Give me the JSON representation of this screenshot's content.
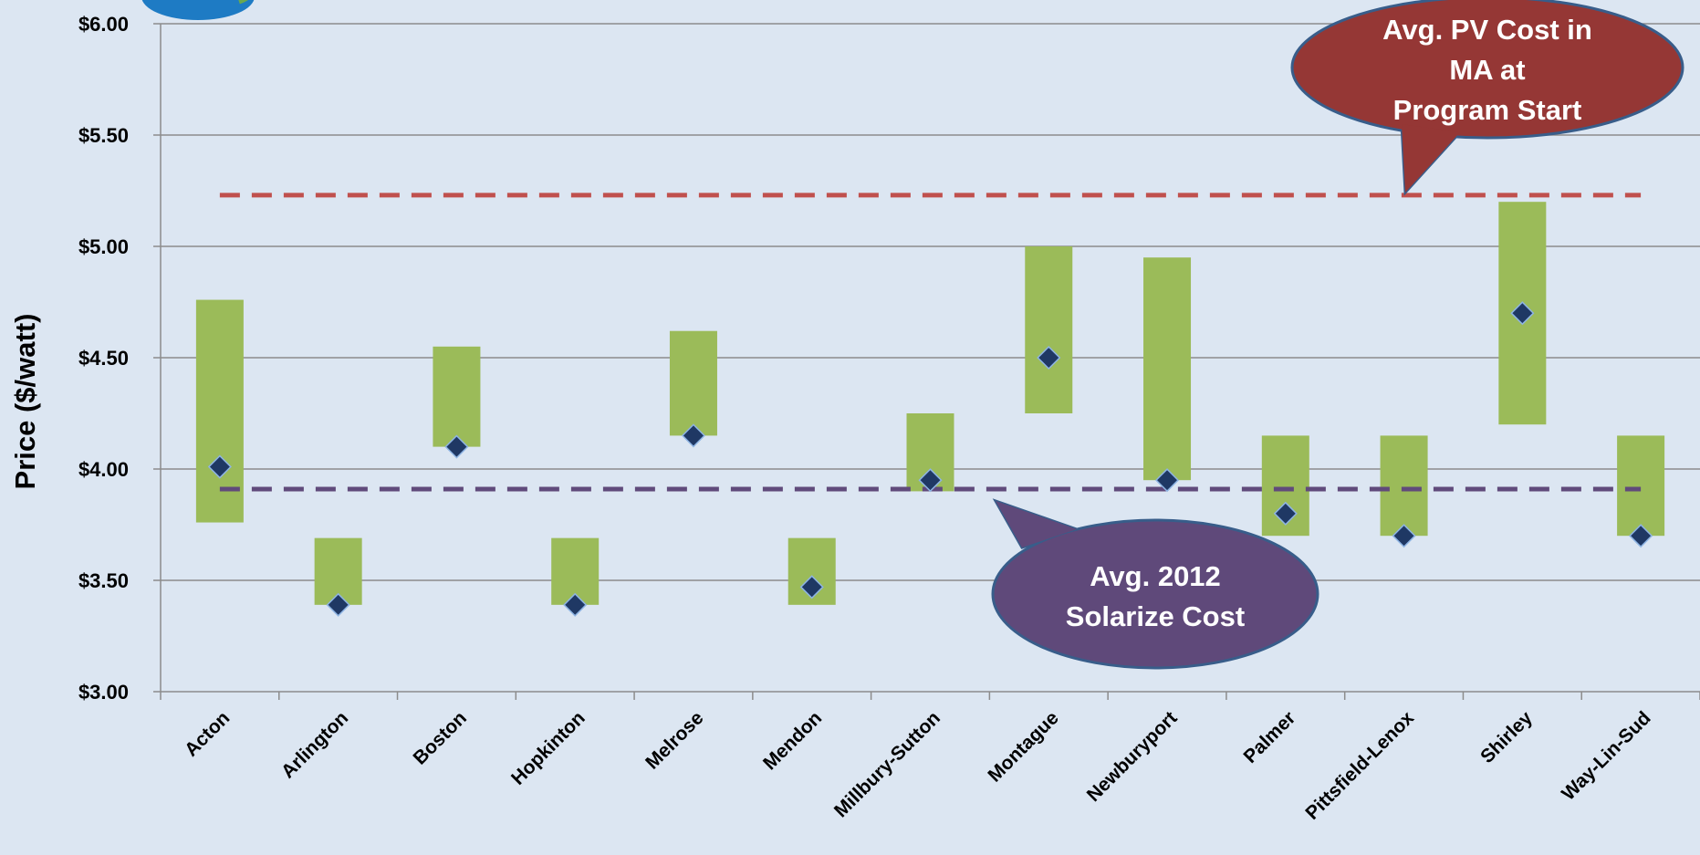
{
  "chart_data": {
    "type": "range",
    "y_axis_label": "Price ($/watt)",
    "categories": [
      "Acton",
      "Arlington",
      "Boston",
      "Hopkinton",
      "Melrose",
      "Mendon",
      "Millbury-Sutton",
      "Montague",
      "Newburyport",
      "Palmer",
      "Pittsfield-Lenox",
      "Shirley",
      "Way-Lin-Sud"
    ],
    "low": [
      3.76,
      3.39,
      4.1,
      3.39,
      4.15,
      3.39,
      3.9,
      4.25,
      3.95,
      3.7,
      3.7,
      4.2,
      3.7
    ],
    "high": [
      4.76,
      3.69,
      4.55,
      3.69,
      4.62,
      3.69,
      4.25,
      5.0,
      4.95,
      4.15,
      4.15,
      5.2,
      4.15
    ],
    "average": [
      4.01,
      3.39,
      4.1,
      3.39,
      4.15,
      3.47,
      3.95,
      4.5,
      3.95,
      3.8,
      3.7,
      4.7,
      3.7
    ],
    "bar_color": "#9bbb59",
    "marker_color": "#1f3864",
    "ylim": [
      3,
      6
    ],
    "yticks": [
      {
        "value": 3,
        "label": "$3.00"
      },
      {
        "value": 3.5,
        "label": "$3.50"
      },
      {
        "value": 4,
        "label": "$4.00"
      },
      {
        "value": 4.5,
        "label": "$4.50"
      },
      {
        "value": 5,
        "label": "$5.00"
      },
      {
        "value": 5.5,
        "label": "$5.50"
      },
      {
        "value": 6,
        "label": "$6.00"
      }
    ],
    "grid": true,
    "reference_lines": [
      {
        "value": 5.23,
        "color": "#c0504d",
        "callout": [
          "Avg. PV Cost in",
          "MA at",
          "Program Start"
        ],
        "callout_color": "#953735"
      },
      {
        "value": 3.91,
        "color": "#604a7b",
        "callout": [
          "Avg. 2012",
          "Solarize Cost"
        ],
        "callout_color": "#5f497a"
      }
    ]
  }
}
